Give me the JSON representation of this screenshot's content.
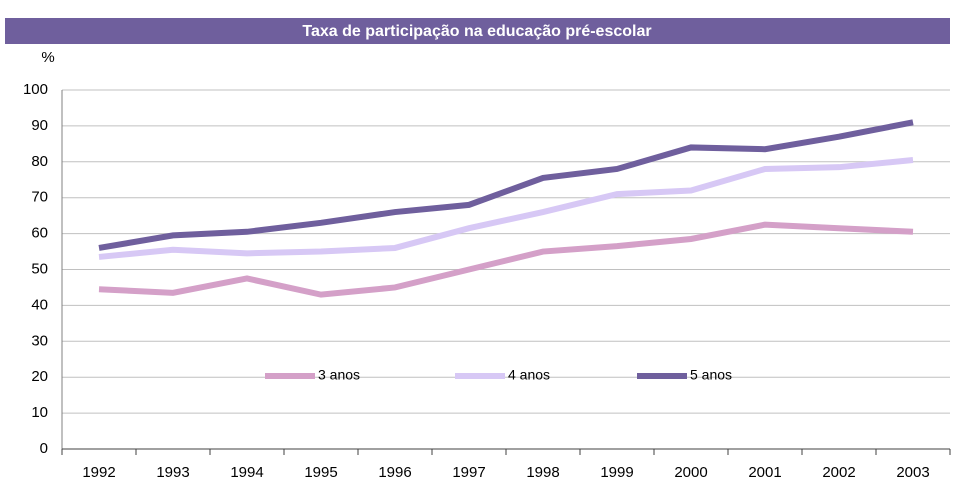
{
  "chart_data": {
    "type": "line",
    "title": "Taxa de participação na educação pré-escolar",
    "ylabel": "%",
    "categories": [
      "1992",
      "1993",
      "1994",
      "1995",
      "1996",
      "1997",
      "1998",
      "1999",
      "2000",
      "2001",
      "2002",
      "2003"
    ],
    "series": [
      {
        "name": "3 anos",
        "color": "#d4a0c8",
        "values": [
          44.5,
          43.5,
          47.5,
          43,
          45,
          50,
          55,
          56.5,
          58.5,
          62.5,
          61.5,
          60.5
        ]
      },
      {
        "name": "4 anos",
        "color": "#d7c8f5",
        "values": [
          53.5,
          55.5,
          54.5,
          55,
          56,
          61.5,
          66,
          71,
          72,
          78,
          78.5,
          80.5
        ]
      },
      {
        "name": "5 anos",
        "color": "#6f5f9d",
        "values": [
          56,
          59.5,
          60.5,
          63,
          66,
          68,
          75.5,
          78,
          84,
          83.5,
          87,
          91
        ]
      }
    ],
    "ylim": [
      0,
      100
    ],
    "yticks": [
      0,
      10,
      20,
      30,
      40,
      50,
      60,
      70,
      80,
      90,
      100
    ],
    "grid": true,
    "legend": "center",
    "title_color": "#6f5f9d"
  }
}
